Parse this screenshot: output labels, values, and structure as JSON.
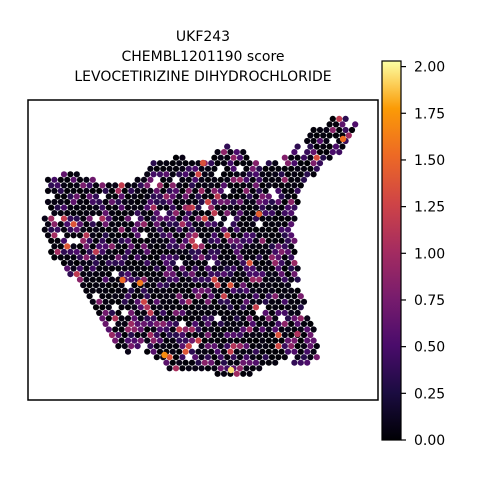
{
  "chart_data": {
    "type": "scatter",
    "title": [
      "UKF243",
      "CHEMBL1201190 score",
      "LEVOCETIRIZINE DIHYDROCHLORIDE"
    ],
    "xlabel": "",
    "ylabel": "",
    "grid": false,
    "legend": "none",
    "colormap": "inferno",
    "colorbar": {
      "range": [
        0.0,
        2.03
      ],
      "ticks": [
        0.0,
        0.25,
        0.5,
        0.75,
        1.0,
        1.25,
        1.5,
        1.75,
        2.0
      ],
      "tick_labels": [
        "0.00",
        "0.25",
        "0.50",
        "0.75",
        "1.00",
        "1.25",
        "1.50",
        "1.75",
        "2.00"
      ]
    },
    "notes_on_data": "spatial spot scores; most spots near 0, scattered higher values up to ~2",
    "highlights": [
      {
        "x": 0.9,
        "y": 0.87,
        "value": 1.55
      },
      {
        "x": 0.5,
        "y": 0.79,
        "value": 1.35
      },
      {
        "x": 0.66,
        "y": 0.62,
        "value": 1.45
      },
      {
        "x": 0.27,
        "y": 0.4,
        "value": 1.5
      },
      {
        "x": 0.32,
        "y": 0.39,
        "value": 1.6
      },
      {
        "x": 0.39,
        "y": 0.15,
        "value": 1.7
      },
      {
        "x": 0.58,
        "y": 0.1,
        "value": 1.95
      },
      {
        "x": 0.77,
        "y": 0.22,
        "value": 1.05
      },
      {
        "x": 0.46,
        "y": 0.64,
        "value": 1.1
      }
    ]
  },
  "colors": {
    "spot_outline": "none",
    "frame": "#000000"
  }
}
